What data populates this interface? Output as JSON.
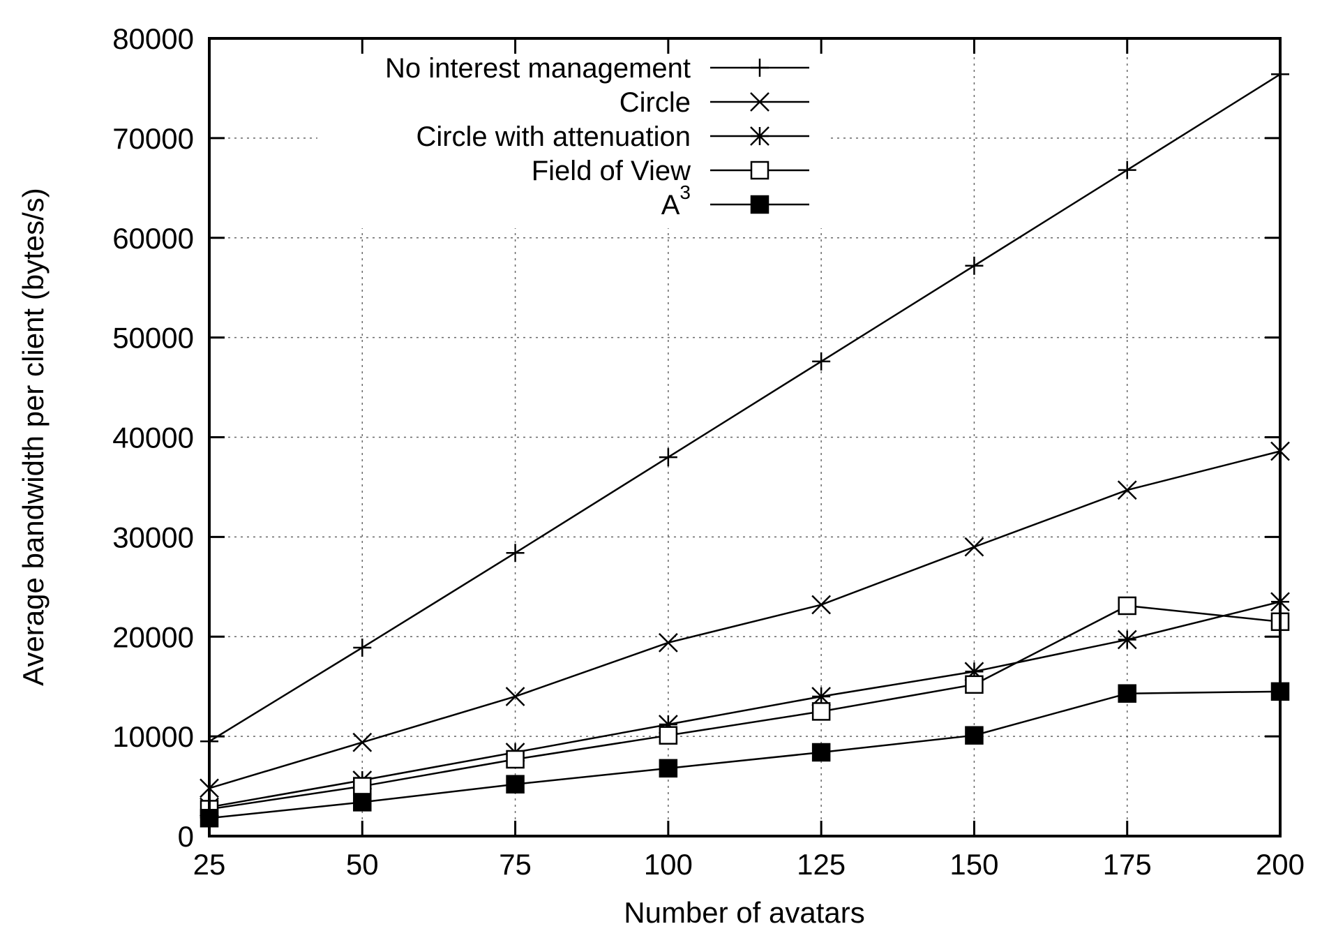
{
  "chart_data": {
    "type": "line",
    "title": "",
    "xlabel": "Number of avatars",
    "ylabel": "Average bandwidth per client (bytes/s)",
    "x": [
      25,
      50,
      75,
      100,
      125,
      150,
      175,
      200
    ],
    "xlim": [
      25,
      200
    ],
    "ylim": [
      0,
      80000
    ],
    "x_ticks": [
      "25",
      "50",
      "75",
      "100",
      "125",
      "150",
      "175",
      "200"
    ],
    "y_ticks": [
      "0",
      "10000",
      "20000",
      "30000",
      "40000",
      "50000",
      "60000",
      "70000",
      "80000"
    ],
    "grid": true,
    "legend_position": "top-left",
    "series": [
      {
        "name": "No interest management",
        "marker": "plus",
        "values": [
          9500,
          18900,
          28400,
          38000,
          47600,
          57200,
          66800,
          76400
        ]
      },
      {
        "name": "Circle",
        "marker": "x",
        "values": [
          4800,
          9400,
          14000,
          19400,
          23200,
          29000,
          34700,
          38600
        ]
      },
      {
        "name": "Circle with attenuation",
        "marker": "star",
        "values": [
          2900,
          5600,
          8400,
          11200,
          14000,
          16500,
          19700,
          23500
        ]
      },
      {
        "name": "Field of View",
        "marker": "open-square",
        "values": [
          2700,
          5000,
          7700,
          10100,
          12500,
          15200,
          23100,
          21500
        ]
      },
      {
        "name": "A",
        "name_superscript": "3",
        "marker": "filled-square",
        "values": [
          1800,
          3400,
          5200,
          6800,
          8400,
          10100,
          14300,
          14500
        ]
      }
    ]
  }
}
